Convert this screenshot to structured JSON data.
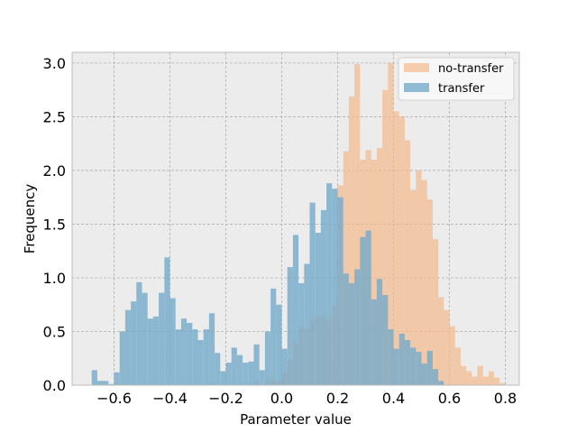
{
  "chart_data": {
    "type": "histogram",
    "title": "",
    "xlabel": "Parameter value",
    "ylabel": "Frequency",
    "xlim": [
      -0.75,
      0.85
    ],
    "ylim": [
      0.0,
      3.1
    ],
    "xticks": [
      -0.6,
      -0.4,
      -0.2,
      0.0,
      0.2,
      0.4,
      0.6,
      0.8
    ],
    "xtick_labels": [
      "−0.6",
      "−0.4",
      "−0.2",
      "0.0",
      "0.2",
      "0.4",
      "0.6",
      "0.8"
    ],
    "yticks": [
      0.0,
      0.5,
      1.0,
      1.5,
      2.0,
      2.5,
      3.0
    ],
    "ytick_labels": [
      "0.0",
      "0.5",
      "1.0",
      "1.5",
      "2.0",
      "2.5",
      "3.0"
    ],
    "grid": true,
    "legend_position": "top-right",
    "bin_width": 0.02,
    "series": [
      {
        "name": "no-transfer",
        "color": "#f4b98c",
        "alpha": 0.7,
        "bins": [
          [
            -0.1,
            0.04
          ],
          [
            -0.08,
            0.0
          ],
          [
            -0.06,
            0.04
          ],
          [
            -0.04,
            0.04
          ],
          [
            -0.02,
            0.04
          ],
          [
            0.0,
            0.12
          ],
          [
            0.02,
            0.24
          ],
          [
            0.04,
            0.4
          ],
          [
            0.06,
            0.55
          ],
          [
            0.08,
            0.52
          ],
          [
            0.1,
            0.62
          ],
          [
            0.12,
            0.65
          ],
          [
            0.14,
            0.64
          ],
          [
            0.16,
            0.62
          ],
          [
            0.18,
            0.74
          ],
          [
            0.2,
            1.86
          ],
          [
            0.22,
            2.18
          ],
          [
            0.24,
            2.69
          ],
          [
            0.26,
            2.99
          ],
          [
            0.28,
            2.1
          ],
          [
            0.3,
            2.19
          ],
          [
            0.32,
            2.1
          ],
          [
            0.34,
            2.21
          ],
          [
            0.36,
            2.75
          ],
          [
            0.38,
            3.0
          ],
          [
            0.4,
            2.55
          ],
          [
            0.42,
            2.5
          ],
          [
            0.44,
            2.28
          ],
          [
            0.46,
            1.82
          ],
          [
            0.48,
            2.0
          ],
          [
            0.5,
            1.91
          ],
          [
            0.52,
            1.73
          ],
          [
            0.54,
            1.36
          ],
          [
            0.56,
            0.82
          ],
          [
            0.58,
            0.7
          ],
          [
            0.6,
            0.55
          ],
          [
            0.62,
            0.35
          ],
          [
            0.64,
            0.18
          ],
          [
            0.66,
            0.13
          ],
          [
            0.68,
            0.08
          ],
          [
            0.7,
            0.18
          ],
          [
            0.72,
            0.08
          ],
          [
            0.74,
            0.13
          ],
          [
            0.76,
            0.07
          ],
          [
            0.78,
            0.02
          ]
        ]
      },
      {
        "name": "transfer",
        "color": "#74aacb",
        "alpha": 0.8,
        "bins": [
          [
            -0.68,
            0.14
          ],
          [
            -0.66,
            0.04
          ],
          [
            -0.64,
            0.04
          ],
          [
            -0.62,
            0.01
          ],
          [
            -0.6,
            0.12
          ],
          [
            -0.58,
            0.5
          ],
          [
            -0.56,
            0.7
          ],
          [
            -0.54,
            0.78
          ],
          [
            -0.52,
            0.96
          ],
          [
            -0.5,
            0.86
          ],
          [
            -0.48,
            0.62
          ],
          [
            -0.46,
            0.64
          ],
          [
            -0.44,
            0.86
          ],
          [
            -0.42,
            1.19
          ],
          [
            -0.4,
            0.81
          ],
          [
            -0.38,
            0.52
          ],
          [
            -0.36,
            0.62
          ],
          [
            -0.34,
            0.58
          ],
          [
            -0.32,
            0.52
          ],
          [
            -0.3,
            0.42
          ],
          [
            -0.28,
            0.52
          ],
          [
            -0.26,
            0.67
          ],
          [
            -0.24,
            0.3
          ],
          [
            -0.22,
            0.13
          ],
          [
            -0.2,
            0.21
          ],
          [
            -0.18,
            0.35
          ],
          [
            -0.16,
            0.28
          ],
          [
            -0.14,
            0.21
          ],
          [
            -0.12,
            0.22
          ],
          [
            -0.1,
            0.38
          ],
          [
            -0.08,
            0.14
          ],
          [
            -0.06,
            0.5
          ],
          [
            -0.04,
            0.9
          ],
          [
            -0.02,
            0.75
          ],
          [
            0.0,
            0.34
          ],
          [
            0.02,
            1.1
          ],
          [
            0.04,
            1.4
          ],
          [
            0.06,
            0.95
          ],
          [
            0.08,
            1.13
          ],
          [
            0.1,
            1.7
          ],
          [
            0.12,
            1.42
          ],
          [
            0.14,
            1.63
          ],
          [
            0.16,
            1.88
          ],
          [
            0.18,
            1.83
          ],
          [
            0.2,
            1.75
          ],
          [
            0.22,
            1.04
          ],
          [
            0.24,
            0.95
          ],
          [
            0.26,
            1.08
          ],
          [
            0.28,
            1.38
          ],
          [
            0.3,
            1.44
          ],
          [
            0.32,
            0.8
          ],
          [
            0.34,
            0.99
          ],
          [
            0.36,
            0.84
          ],
          [
            0.38,
            0.52
          ],
          [
            0.4,
            0.34
          ],
          [
            0.42,
            0.48
          ],
          [
            0.44,
            0.42
          ],
          [
            0.46,
            0.35
          ],
          [
            0.48,
            0.31
          ],
          [
            0.5,
            0.2
          ],
          [
            0.52,
            0.32
          ],
          [
            0.54,
            0.15
          ],
          [
            0.56,
            0.04
          ]
        ]
      }
    ]
  }
}
